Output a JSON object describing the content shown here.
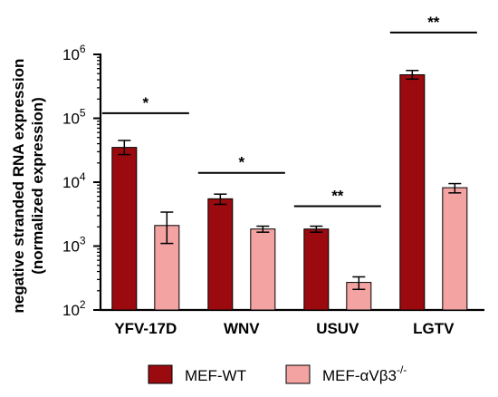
{
  "chart_data": {
    "type": "bar",
    "title": "",
    "ylabel": [
      "negative stranded RNA expression",
      "(normalized expression)"
    ],
    "xlabel": "",
    "yscale": "log",
    "ylim": [
      100,
      1000000
    ],
    "yticks": [
      {
        "value": 100,
        "base": "10",
        "exp": "2"
      },
      {
        "value": 1000,
        "base": "10",
        "exp": "3"
      },
      {
        "value": 10000,
        "base": "10",
        "exp": "4"
      },
      {
        "value": 100000,
        "base": "10",
        "exp": "5"
      },
      {
        "value": 1000000,
        "base": "10",
        "exp": "6"
      }
    ],
    "categories": [
      "YFV-17D",
      "WNV",
      "USUV",
      "LGTV"
    ],
    "series": [
      {
        "name": "MEF-WT",
        "color": "#9b0a0e",
        "values": [
          35000,
          5500,
          1850,
          480000
        ],
        "error_low": [
          27000,
          4500,
          1650,
          410000
        ],
        "error_high": [
          45000,
          6500,
          2050,
          560000
        ]
      },
      {
        "name": "MEF-αVβ3",
        "name_sup": "-/-",
        "color": "#f4a3a3",
        "values": [
          2100,
          1850,
          270,
          8200
        ],
        "error_low": [
          1100,
          1650,
          210,
          6800
        ],
        "error_high": [
          3400,
          2050,
          330,
          9500
        ]
      }
    ],
    "significance": [
      {
        "category": "YFV-17D",
        "label": "*",
        "y": 120000
      },
      {
        "category": "WNV",
        "label": "*",
        "y": 14000
      },
      {
        "category": "USUV",
        "label": "**",
        "y": 4200
      },
      {
        "category": "LGTV",
        "label": "**",
        "y": 2200000
      }
    ],
    "legend_position": "bottom",
    "grid": false
  }
}
